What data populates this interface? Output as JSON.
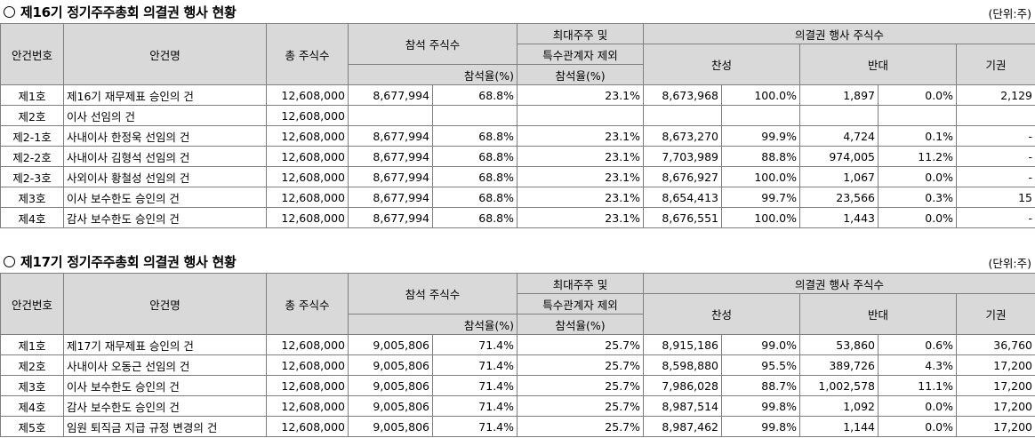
{
  "headers": {
    "agenda_no": "안건번호",
    "agenda_name": "안건명",
    "total_shares": "총 주식수",
    "attending_shares": "참석 주식수",
    "attendance_rate": "참석율(%)",
    "excl_line1": "최대주주 및",
    "excl_line2": "특수관계자 제외",
    "excl_line3": "참석율(%)",
    "voting_group": "의결권 행사 주식수",
    "for": "찬성",
    "pct": "%",
    "against": "반대",
    "abstain": "기권"
  },
  "sections": [
    {
      "title": "제16기 정기주주총회 의결권 행사 현황",
      "unit": "(단위:주)",
      "rows": [
        {
          "no": "제1호",
          "name": "제16기 재무제표 승인의 건",
          "total": "12,608,000",
          "attend": "8,677,994",
          "rate": "68.8%",
          "excl": "23.1%",
          "for": "8,673,968",
          "for_pct": "100.0%",
          "against": "1,897",
          "against_pct": "0.0%",
          "abstain": "2,129"
        },
        {
          "no": "제2호",
          "name": "이사 선임의 건",
          "total": "12,608,000",
          "attend": "",
          "rate": "",
          "excl": "",
          "for": "",
          "for_pct": "",
          "against": "",
          "against_pct": "",
          "abstain": ""
        },
        {
          "no": "제2-1호",
          "name": "사내이사 한정욱 선임의 건",
          "total": "12,608,000",
          "attend": "8,677,994",
          "rate": "68.8%",
          "excl": "23.1%",
          "for": "8,673,270",
          "for_pct": "99.9%",
          "against": "4,724",
          "against_pct": "0.1%",
          "abstain": "-"
        },
        {
          "no": "제2-2호",
          "name": "사내이사 김형석 선임의 건",
          "total": "12,608,000",
          "attend": "8,677,994",
          "rate": "68.8%",
          "excl": "23.1%",
          "for": "7,703,989",
          "for_pct": "88.8%",
          "against": "974,005",
          "against_pct": "11.2%",
          "abstain": "-"
        },
        {
          "no": "제2-3호",
          "name": "사외이사 황철성 선임의 건",
          "total": "12,608,000",
          "attend": "8,677,994",
          "rate": "68.8%",
          "excl": "23.1%",
          "for": "8,676,927",
          "for_pct": "100.0%",
          "against": "1,067",
          "against_pct": "0.0%",
          "abstain": "-"
        },
        {
          "no": "제3호",
          "name": "이사 보수한도 승인의 건",
          "total": "12,608,000",
          "attend": "8,677,994",
          "rate": "68.8%",
          "excl": "23.1%",
          "for": "8,654,413",
          "for_pct": "99.7%",
          "against": "23,566",
          "against_pct": "0.3%",
          "abstain": "15"
        },
        {
          "no": "제4호",
          "name": "감사 보수한도 승인의 건",
          "total": "12,608,000",
          "attend": "8,677,994",
          "rate": "68.8%",
          "excl": "23.1%",
          "for": "8,676,551",
          "for_pct": "100.0%",
          "against": "1,443",
          "against_pct": "0.0%",
          "abstain": "-"
        }
      ]
    },
    {
      "title": "제17기 정기주주총회 의결권 행사 현황",
      "unit": "(단위:주)",
      "rows": [
        {
          "no": "제1호",
          "name": "제17기 재무제표 승인의 건",
          "total": "12,608,000",
          "attend": "9,005,806",
          "rate": "71.4%",
          "excl": "25.7%",
          "for": "8,915,186",
          "for_pct": "99.0%",
          "against": "53,860",
          "against_pct": "0.6%",
          "abstain": "36,760"
        },
        {
          "no": "제2호",
          "name": "사내이사 오동근 선임의 건",
          "total": "12,608,000",
          "attend": "9,005,806",
          "rate": "71.4%",
          "excl": "25.7%",
          "for": "8,598,880",
          "for_pct": "95.5%",
          "against": "389,726",
          "against_pct": "4.3%",
          "abstain": "17,200"
        },
        {
          "no": "제3호",
          "name": "이사 보수한도 승인의 건",
          "total": "12,608,000",
          "attend": "9,005,806",
          "rate": "71.4%",
          "excl": "25.7%",
          "for": "7,986,028",
          "for_pct": "88.7%",
          "against": "1,002,578",
          "against_pct": "11.1%",
          "abstain": "17,200"
        },
        {
          "no": "제4호",
          "name": "감사 보수한도 승인의 건",
          "total": "12,608,000",
          "attend": "9,005,806",
          "rate": "71.4%",
          "excl": "25.7%",
          "for": "8,987,514",
          "for_pct": "99.8%",
          "against": "1,092",
          "against_pct": "0.0%",
          "abstain": "17,200"
        },
        {
          "no": "제5호",
          "name": "임원 퇴직금 지급 규정 변경의 건",
          "total": "12,608,000",
          "attend": "9,005,806",
          "rate": "71.4%",
          "excl": "25.7%",
          "for": "8,987,462",
          "for_pct": "99.8%",
          "against": "1,144",
          "against_pct": "0.0%",
          "abstain": "17,200"
        }
      ]
    }
  ]
}
